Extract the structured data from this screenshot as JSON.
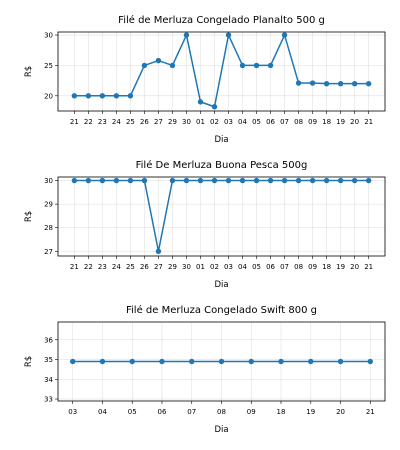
{
  "chart_data": [
    {
      "type": "line",
      "title": "Filé de Merluza Congelado Planalto 500 g",
      "xlabel": "Dia",
      "ylabel": "R$",
      "ylim": [
        17.5,
        30.5
      ],
      "yticks": [
        20,
        25,
        30
      ],
      "grid": true,
      "color": "#1f77b4",
      "categories": [
        "21",
        "22",
        "23",
        "24",
        "25",
        "26",
        "27",
        "29",
        "30",
        "01",
        "02",
        "03",
        "04",
        "05",
        "06",
        "07",
        "08",
        "09",
        "18",
        "19",
        "20",
        "21"
      ],
      "values": [
        20,
        20,
        20,
        20,
        20,
        25,
        25.8,
        25,
        30,
        19,
        18.2,
        30,
        25,
        25,
        25,
        30,
        22.1,
        22.1,
        22,
        22,
        22,
        22
      ]
    },
    {
      "type": "line",
      "title": "Filé De Merluza Buona Pesca 500g",
      "xlabel": "Dia",
      "ylabel": "R$",
      "ylim": [
        26.8,
        30.15
      ],
      "yticks": [
        27,
        28,
        29,
        30
      ],
      "grid": true,
      "color": "#1f77b4",
      "categories": [
        "21",
        "22",
        "23",
        "24",
        "25",
        "26",
        "27",
        "29",
        "30",
        "01",
        "02",
        "03",
        "04",
        "05",
        "06",
        "07",
        "08",
        "09",
        "18",
        "19",
        "20",
        "21"
      ],
      "values": [
        30,
        30,
        30,
        30,
        30,
        30,
        27,
        30,
        30,
        30,
        30,
        30,
        30,
        30,
        30,
        30,
        30,
        30,
        30,
        30,
        30,
        30
      ]
    },
    {
      "type": "line",
      "title": "Filé de Merluza Congelado Swift 800 g",
      "xlabel": "Dia",
      "ylabel": "R$",
      "ylim": [
        32.9,
        36.9
      ],
      "yticks": [
        33,
        34,
        35,
        36
      ],
      "grid": true,
      "color": "#1f77b4",
      "categories": [
        "03",
        "04",
        "05",
        "06",
        "07",
        "08",
        "09",
        "18",
        "19",
        "20",
        "21"
      ],
      "values": [
        34.9,
        34.9,
        34.9,
        34.9,
        34.9,
        34.9,
        34.9,
        34.9,
        34.9,
        34.9,
        34.9
      ]
    }
  ]
}
